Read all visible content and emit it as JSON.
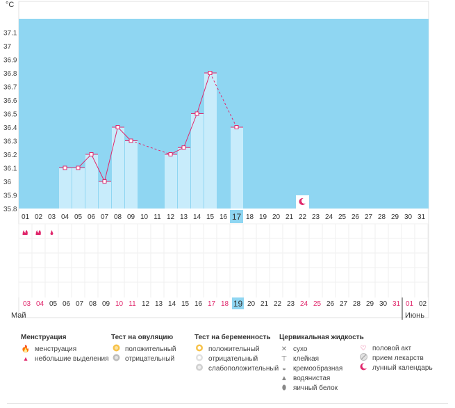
{
  "chart_data": {
    "type": "bar",
    "unit": "°C",
    "ylim": [
      35.8,
      37.2
    ],
    "yticks": [
      "37.1",
      "37",
      "36.9",
      "36.8",
      "36.7",
      "36.6",
      "36.5",
      "36.4",
      "36.3",
      "36.2",
      "36.1",
      "36",
      "35.9",
      "35.8"
    ],
    "days": [
      "01",
      "02",
      "03",
      "04",
      "05",
      "06",
      "07",
      "08",
      "09",
      "10",
      "11",
      "12",
      "13",
      "14",
      "15",
      "16",
      "17",
      "18",
      "19",
      "20",
      "21",
      "22",
      "23",
      "24",
      "25",
      "26",
      "27",
      "28",
      "29",
      "30",
      "31"
    ],
    "temperatures": [
      null,
      null,
      null,
      36.1,
      36.1,
      36.2,
      36.0,
      36.4,
      36.3,
      null,
      null,
      36.2,
      36.25,
      36.5,
      36.8,
      null,
      36.4,
      null,
      null,
      null,
      null,
      null,
      null,
      null,
      null,
      null,
      null,
      null,
      null,
      null,
      null
    ],
    "highlight_day": "17",
    "moon_day": "22",
    "menstruation": [
      {
        "day": "01",
        "icon": "menstruation-icon"
      },
      {
        "day": "02",
        "icon": "menstruation-icon"
      },
      {
        "day": "03",
        "icon": "spotting-icon"
      }
    ],
    "cycle_dates": [
      "03",
      "04",
      "05",
      "06",
      "07",
      "08",
      "09",
      "10",
      "11",
      "12",
      "13",
      "14",
      "15",
      "16",
      "17",
      "18",
      "19",
      "20",
      "21",
      "22",
      "23",
      "24",
      "25",
      "26",
      "27",
      "28",
      "29",
      "30",
      "31",
      "01",
      "02"
    ],
    "red_cycle_dates": [
      "03",
      "04",
      "10",
      "11",
      "17",
      "18",
      "24",
      "25",
      "31",
      "01"
    ],
    "highlight_cycle_date": "19",
    "month_start": "Май",
    "month_next": "Июнь",
    "colors": {
      "plot_bg": "#8fd6f2",
      "bar": "#c8ecfb",
      "line": "#e0286c",
      "highlight": "#8fd6f2",
      "red_date": "#e0286c"
    }
  },
  "legend": {
    "menstruation": {
      "title": "Менструация",
      "items": [
        {
          "label": "менструация",
          "icon": "menstruation-icon"
        },
        {
          "label": "небольшие выделения",
          "icon": "spotting-icon"
        }
      ]
    },
    "ovulation": {
      "title": "Тест на овуляцию",
      "items": [
        {
          "label": "положительный",
          "icon": "ovulation-positive-icon"
        },
        {
          "label": "отрицательный",
          "icon": "ovulation-negative-icon"
        }
      ]
    },
    "pregnancy": {
      "title": "Тест на беременность",
      "items": [
        {
          "label": "положительный",
          "icon": "pregnancy-positive-icon"
        },
        {
          "label": "отрицательный",
          "icon": "pregnancy-negative-icon"
        },
        {
          "label": "слабоположительный",
          "icon": "pregnancy-weak-icon"
        }
      ]
    },
    "fluid": {
      "title": "Цервикальная жидкость",
      "items": [
        {
          "label": "сухо",
          "icon": "dry-icon"
        },
        {
          "label": "клейкая",
          "icon": "sticky-icon"
        },
        {
          "label": "кремообразная",
          "icon": "creamy-icon"
        },
        {
          "label": "водянистая",
          "icon": "watery-icon"
        },
        {
          "label": "яичный белок",
          "icon": "egg-white-icon"
        }
      ]
    },
    "other": {
      "items": [
        {
          "label": "половой акт",
          "icon": "heart-icon"
        },
        {
          "label": "прием лекарств",
          "icon": "pill-icon"
        },
        {
          "label": "лунный календарь",
          "icon": "moon-icon"
        }
      ]
    }
  }
}
